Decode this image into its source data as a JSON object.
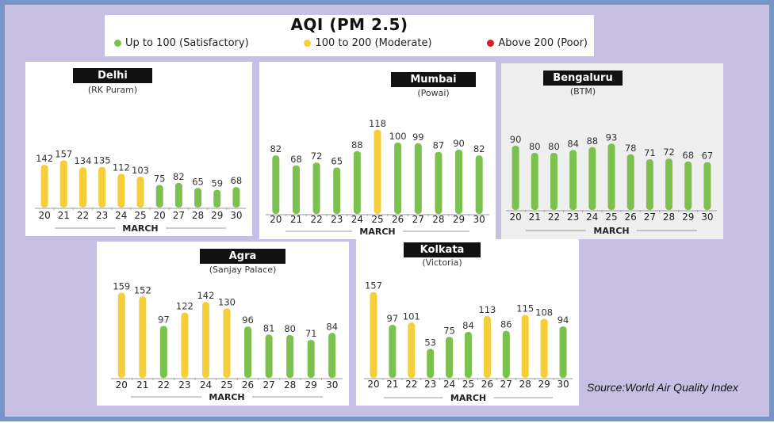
{
  "header": {
    "title": "AQI (PM 2.5)",
    "legend": [
      {
        "label": "Up to 100 (Satisfactory)",
        "color": "#7cc04e"
      },
      {
        "label": "100 to 200 (Moderate)",
        "color": "#f5cf3a"
      },
      {
        "label": "Above 200 (Poor)",
        "color": "#d0202a"
      }
    ]
  },
  "source": "Source:World Air Quality Index",
  "colors": {
    "satisfactory": "#7cc04e",
    "moderate": "#f5cf3a",
    "poor": "#d0202a"
  },
  "chart_data": [
    {
      "type": "bar",
      "title": "Delhi",
      "subtitle": "(RK Puram)",
      "xlabel": "MARCH",
      "categories": [
        "20",
        "21",
        "22",
        "23",
        "24",
        "25",
        "20",
        "27",
        "28",
        "29",
        "30"
      ],
      "values": [
        142,
        157,
        134,
        135,
        112,
        103,
        75,
        82,
        65,
        59,
        68
      ],
      "ylim": [
        0,
        200
      ]
    },
    {
      "type": "bar",
      "title": "Mumbai",
      "subtitle": "(Powai)",
      "xlabel": "MARCH",
      "categories": [
        "20",
        "21",
        "22",
        "23",
        "24",
        "25",
        "26",
        "27",
        "28",
        "29",
        "30"
      ],
      "values": [
        82,
        68,
        72,
        65,
        88,
        118,
        100,
        99,
        87,
        90,
        82
      ],
      "ylim": [
        0,
        200
      ]
    },
    {
      "type": "bar",
      "title": "Bengaluru",
      "subtitle": "(BTM)",
      "xlabel": "MARCH",
      "categories": [
        "20",
        "21",
        "22",
        "23",
        "24",
        "25",
        "26",
        "27",
        "28",
        "29",
        "30"
      ],
      "values": [
        90,
        80,
        80,
        84,
        88,
        93,
        78,
        71,
        72,
        68,
        67
      ],
      "ylim": [
        0,
        200
      ]
    },
    {
      "type": "bar",
      "title": "Agra",
      "subtitle": "(Sanjay Palace)",
      "xlabel": "MARCH",
      "categories": [
        "20",
        "21",
        "22",
        "23",
        "24",
        "25",
        "26",
        "27",
        "28",
        "29",
        "30"
      ],
      "values": [
        159,
        152,
        97,
        122,
        142,
        130,
        96,
        81,
        80,
        71,
        84
      ],
      "ylim": [
        0,
        200
      ]
    },
    {
      "type": "bar",
      "title": "Kolkata",
      "subtitle": "(Victoria)",
      "xlabel": "MARCH",
      "categories": [
        "20",
        "21",
        "22",
        "23",
        "24",
        "25",
        "26",
        "27",
        "28",
        "29",
        "30"
      ],
      "values": [
        157,
        97,
        101,
        53,
        75,
        84,
        113,
        86,
        115,
        108,
        94
      ],
      "ylim": [
        0,
        200
      ]
    }
  ]
}
